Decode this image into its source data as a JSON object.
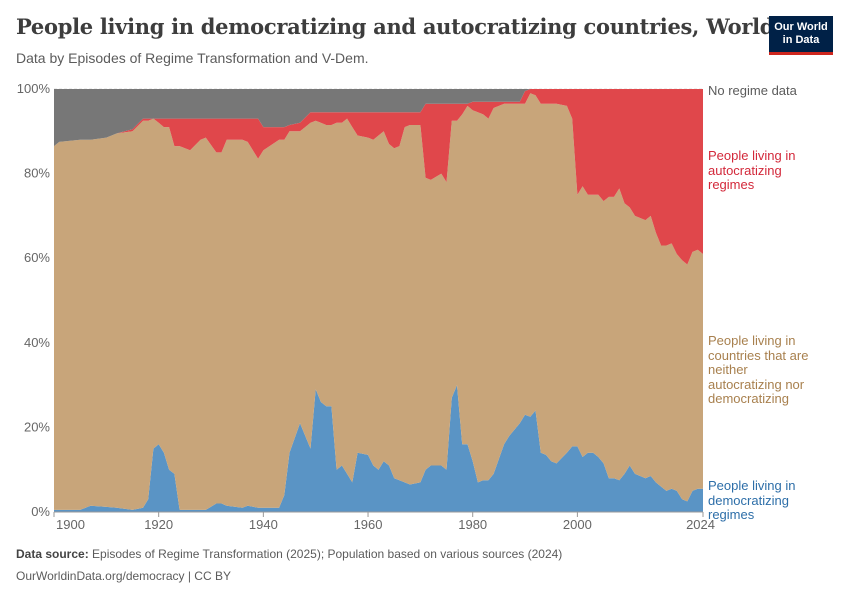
{
  "header": {
    "title": "People living in democratizing and autocratizing countries, World",
    "subtitle": "Data by Episodes of Regime Transformation and V-Dem.",
    "logo_line1": "Our World",
    "logo_line2": "in Data"
  },
  "footer": {
    "source_label": "Data source:",
    "source_text": " Episodes of Regime Transformation (2025); Population based on various sources (2024)",
    "url_line": "OurWorldinData.org/democracy | CC BY"
  },
  "chart_data": {
    "type": "area",
    "stacked": true,
    "title": "People living in democratizing and autocratizing countries, World",
    "xlabel": "",
    "ylabel": "",
    "xlim": [
      1900,
      2024
    ],
    "ylim": [
      0,
      100
    ],
    "yticks": [
      {
        "v": 0,
        "label": "0%"
      },
      {
        "v": 20,
        "label": "20%"
      },
      {
        "v": 40,
        "label": "40%"
      },
      {
        "v": 60,
        "label": "60%"
      },
      {
        "v": 80,
        "label": "80%"
      },
      {
        "v": 100,
        "label": "100%"
      }
    ],
    "xticks": [
      {
        "v": 1900,
        "label": "1900"
      },
      {
        "v": 1920,
        "label": "1920"
      },
      {
        "v": 1940,
        "label": "1940"
      },
      {
        "v": 1960,
        "label": "1960"
      },
      {
        "v": 1980,
        "label": "1980"
      },
      {
        "v": 2000,
        "label": "2000"
      },
      {
        "v": 2024,
        "label": "2024"
      }
    ],
    "grid": true,
    "legend_placement": "right-inline",
    "x": [
      1900,
      1901,
      1905,
      1907,
      1910,
      1912,
      1915,
      1917,
      1918,
      1919,
      1920,
      1921,
      1922,
      1923,
      1924,
      1926,
      1928,
      1929,
      1931,
      1932,
      1933,
      1936,
      1937,
      1939,
      1940,
      1943,
      1944,
      1945,
      1947,
      1949,
      1950,
      1951,
      1952,
      1953,
      1954,
      1955,
      1956,
      1957,
      1958,
      1960,
      1961,
      1962,
      1963,
      1964,
      1965,
      1966,
      1967,
      1968,
      1970,
      1971,
      1972,
      1974,
      1975,
      1976,
      1977,
      1978,
      1979,
      1980,
      1981,
      1982,
      1983,
      1984,
      1986,
      1987,
      1989,
      1990,
      1991,
      1992,
      1993,
      1994,
      1995,
      1996,
      1998,
      1999,
      2000,
      2001,
      2002,
      2003,
      2004,
      2005,
      2006,
      2007,
      2008,
      2009,
      2010,
      2011,
      2012,
      2013,
      2014,
      2015,
      2016,
      2017,
      2018,
      2019,
      2020,
      2021,
      2022,
      2023,
      2024
    ],
    "series": [
      {
        "name": "People living in democratizing regimes",
        "color": "#5a94c5",
        "label_color": "#2d6ea8",
        "values": [
          0.5,
          0.5,
          0.5,
          1.5,
          1.2,
          1,
          0.5,
          1,
          3,
          15,
          16,
          14,
          10,
          9,
          0.5,
          0.5,
          0.5,
          0.5,
          2,
          2,
          1.5,
          1,
          1.5,
          1,
          1,
          1,
          4,
          14,
          21,
          15,
          29,
          26,
          25,
          25,
          10,
          11,
          9,
          7,
          14,
          13.5,
          11,
          10,
          12,
          11,
          8,
          7.5,
          7,
          6.5,
          7,
          10,
          11,
          11,
          10,
          27,
          30,
          16,
          16,
          12,
          7,
          7.5,
          7.5,
          9,
          16,
          18,
          21,
          23,
          22.5,
          24,
          14,
          13.5,
          12,
          11.5,
          14,
          15.5,
          15.5,
          13,
          14,
          14,
          13,
          11.5,
          8,
          8,
          7.5,
          9,
          11,
          9,
          8.5,
          8,
          8.5,
          7,
          6,
          5,
          5.5,
          5,
          3,
          2.5,
          5,
          5.5,
          5.5
        ]
      },
      {
        "name": "People living in countries that are neither autocratizing nor democratizing",
        "color": "#c8a57a",
        "label_color": "#a8804e",
        "values": [
          86,
          87,
          87.5,
          86.5,
          87.3,
          88.5,
          89.5,
          91.5,
          89.5,
          78,
          76,
          77,
          81,
          77.5,
          86,
          85,
          87.5,
          88,
          83,
          83,
          86.5,
          87,
          86,
          82.5,
          84.5,
          87,
          84,
          76,
          69,
          77,
          63.5,
          66,
          66.5,
          66.5,
          82,
          81,
          84,
          84,
          75,
          75,
          77,
          79,
          78,
          76,
          78,
          79,
          84,
          85,
          84.5,
          69,
          67.5,
          69,
          68,
          65.5,
          62.5,
          78,
          80,
          83,
          87.5,
          86.5,
          85.5,
          86.5,
          80.5,
          78.5,
          75.5,
          73.5,
          76.5,
          74.5,
          82.5,
          83,
          84.5,
          85,
          82,
          77.5,
          59.5,
          64,
          61,
          61,
          62,
          62,
          66.5,
          66.5,
          69,
          64,
          61,
          61,
          61,
          61,
          61.5,
          59,
          57,
          58,
          58,
          56,
          56.5,
          56,
          56.5,
          56.5,
          55.5
        ]
      },
      {
        "name": "People living in autocratizing regimes",
        "color": "#e0474b",
        "label_color": "#d3283a",
        "values": [
          0,
          0,
          0,
          0,
          0,
          0,
          0.5,
          0.5,
          0.5,
          0,
          1,
          2,
          2,
          6.5,
          6.5,
          7.5,
          5,
          4.5,
          8,
          8,
          5,
          5,
          5.5,
          9.5,
          5.5,
          3,
          3,
          1.5,
          2,
          2.5,
          2,
          2.5,
          3,
          3,
          2.5,
          2.5,
          1.5,
          3.5,
          5.5,
          6,
          6.5,
          5.5,
          4.5,
          7.5,
          8.5,
          8,
          3.5,
          3,
          3,
          17.5,
          18,
          16.5,
          18.5,
          4,
          4,
          2.5,
          0.5,
          2,
          2.5,
          3,
          4,
          1.5,
          0.5,
          0.5,
          0.5,
          3,
          1,
          1.5,
          3.5,
          3.5,
          3.5,
          3.5,
          4,
          7,
          25,
          23,
          25,
          25,
          25,
          26.5,
          25.5,
          25.5,
          23.5,
          27,
          28,
          30,
          30.5,
          31,
          30,
          34,
          37,
          37,
          36.5,
          39,
          40.5,
          41.5,
          38.5,
          38,
          39
        ]
      },
      {
        "name": "No regime data",
        "color": "#777777",
        "label_color": "#5b5b5b",
        "values": [
          13.5,
          12.5,
          12,
          12,
          11.5,
          10.5,
          9.5,
          7,
          7,
          7,
          7,
          7,
          7,
          7,
          7,
          7,
          7,
          7,
          7,
          7,
          7,
          7,
          7,
          7,
          9,
          9,
          9,
          8.5,
          8,
          5.5,
          5.5,
          5.5,
          5.5,
          5.5,
          5.5,
          5.5,
          5.5,
          5.5,
          5.5,
          5.5,
          5.5,
          5.5,
          5.5,
          5.5,
          5.5,
          5.5,
          5.5,
          5.5,
          5.5,
          3.5,
          3.5,
          3.5,
          3.5,
          3.5,
          3.5,
          3.5,
          3.5,
          3,
          3,
          3,
          3,
          3,
          3,
          3,
          3,
          0.5,
          0,
          0,
          0,
          0,
          0,
          0,
          0,
          0,
          0,
          0,
          0,
          0,
          0,
          0,
          0,
          0,
          0,
          0,
          0,
          0,
          0,
          0,
          0,
          0,
          0,
          0,
          0,
          0,
          0,
          0,
          0,
          0,
          0
        ]
      }
    ],
    "labels": {
      "no_data": [
        "No regime data"
      ],
      "autocratizing": [
        "People living in",
        "autocratizing",
        "regimes"
      ],
      "neither": [
        "People living in",
        "countries that are",
        "neither",
        "autocratizing nor",
        "democratizing"
      ],
      "democratizing": [
        "People living in",
        "democratizing",
        "regimes"
      ]
    }
  }
}
